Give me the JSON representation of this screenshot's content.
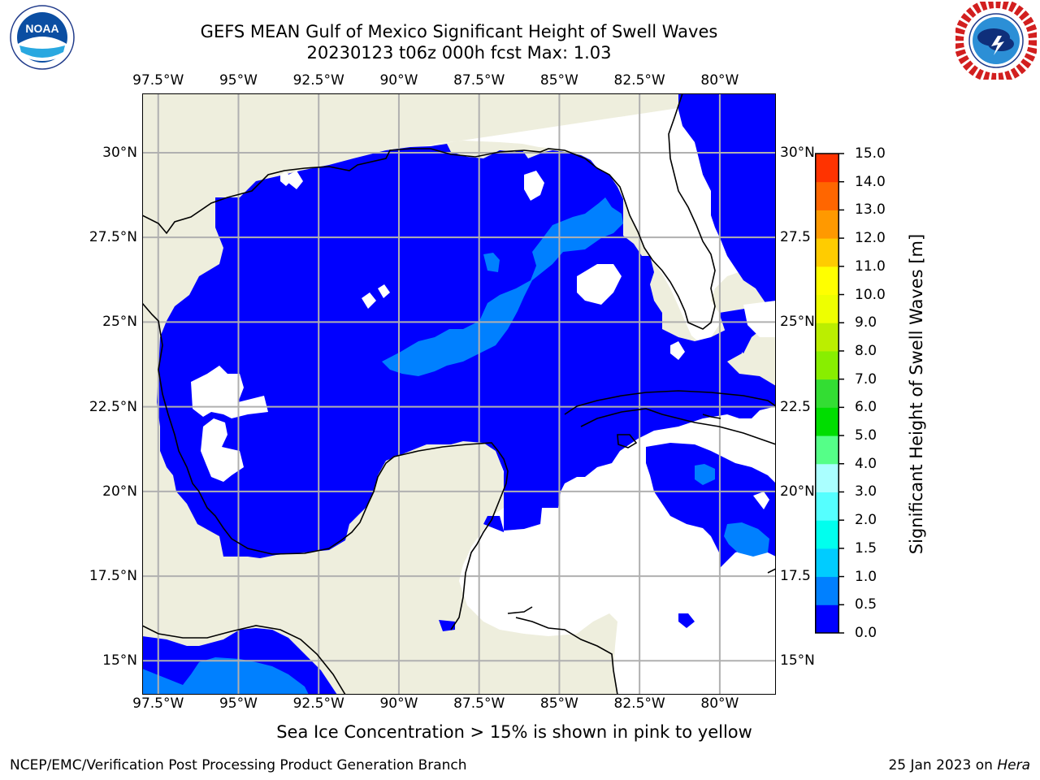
{
  "title": {
    "line1": "GEFS MEAN Gulf of Mexico Significant Height of Swell Waves",
    "line2": "20230123 t06z 000h fcst   Max: 1.03"
  },
  "logos": {
    "left": {
      "text": "NOAA",
      "ring_text": "NATIONAL OCEANIC AND ATMOSPHERIC ADMINISTRATION · U.S. DEPARTMENT OF COMMERCE"
    },
    "right": {
      "ring_text": "NATIONAL WEATHER SERVICE"
    }
  },
  "map": {
    "lon_range": [
      -98,
      -78.25
    ],
    "lat_range": [
      14,
      31.75
    ],
    "x_ticks": [
      "97.5°W",
      "95°W",
      "92.5°W",
      "90°W",
      "87.5°W",
      "85°W",
      "82.5°W",
      "80°W"
    ],
    "y_ticks_left": [
      "30°N",
      "27.5°N",
      "25°N",
      "22.5°N",
      "20°N",
      "17.5°N",
      "15°N"
    ],
    "y_ticks_right": [
      "30°N",
      "27.5",
      "25°N",
      "22.5",
      "20°N",
      "17.5",
      "15°N"
    ],
    "colors": {
      "land": "#eeeedd",
      "no_data": "#ffffff",
      "swell_0_05": "#0000ff",
      "swell_05_1": "#0080ff",
      "swell_1_15": "#00a6ff",
      "grid": "#b0b0b0",
      "coast": "#000000"
    }
  },
  "colorbar": {
    "label": "Significant Height of Swell Waves [m]",
    "ticks": [
      "0.0",
      "0.5",
      "1.0",
      "1.5",
      "2.0",
      "3.0",
      "4.0",
      "5.0",
      "6.0",
      "7.0",
      "8.0",
      "9.0",
      "10.0",
      "11.0",
      "12.0",
      "13.0",
      "14.0",
      "15.0"
    ],
    "colors": [
      "#0000ff",
      "#0080ff",
      "#00ccff",
      "#00ffee",
      "#55ffff",
      "#aaffff",
      "#55ff88",
      "#00dd00",
      "#33dd33",
      "#88ee00",
      "#bbee00",
      "#eeff00",
      "#ffff00",
      "#ffcc00",
      "#ff9900",
      "#ff6600",
      "#ff3300",
      "#ff0000"
    ]
  },
  "subtitle": "Sea Ice Concentration > 15% is shown in pink to yellow",
  "footer": {
    "left": "NCEP/EMC/Verification Post Processing Product Generation Branch",
    "right_date": "25 Jan 2023 on ",
    "right_host": "Hera"
  }
}
